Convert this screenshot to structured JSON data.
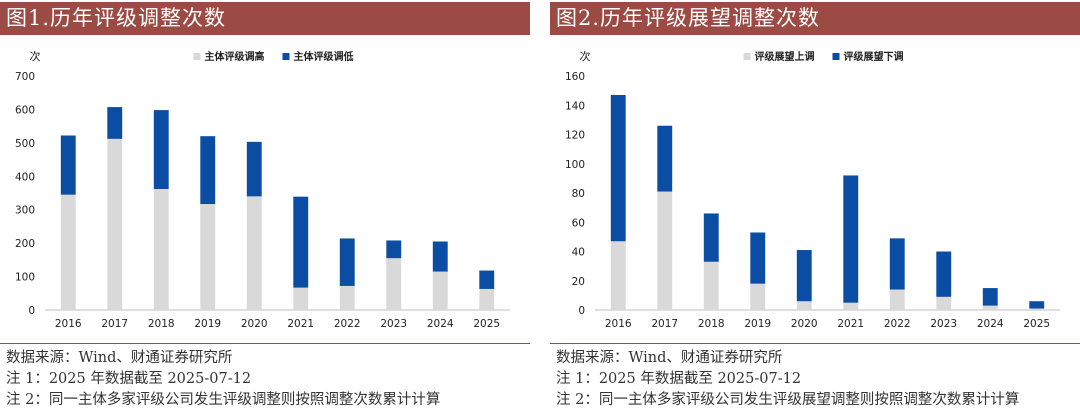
{
  "panels": [
    {
      "title": "图1.历年评级调整次数",
      "source": "数据来源：Wind、财通证券研究所",
      "note1": "注 1：2025 年数据截至 2025-07-12",
      "note2": "注 2：同一主体多家评级公司发生评级调整则按照调整次数累计计算"
    },
    {
      "title": "图2.历年评级展望调整次数",
      "source": "数据来源：Wind、财通证券研究所",
      "note1": "注 1：2025 年数据截至 2025-07-12",
      "note2": "注 2：同一主体多家评级公司发生评级展望调整则按照调整次数累计计算"
    }
  ],
  "colors": {
    "title_bg": "#9b4a44",
    "series_up": "#d9d9d9",
    "series_down": "#0b4da2"
  },
  "chart_data": [
    {
      "type": "bar",
      "stacked": true,
      "title": "历年评级调整次数",
      "ylabel": "次",
      "xlabel": "",
      "ylim": [
        0,
        700
      ],
      "yticks": [
        0,
        100,
        200,
        300,
        400,
        500,
        600,
        700
      ],
      "grid": false,
      "legend": "top",
      "categories": [
        "2016",
        "2017",
        "2018",
        "2019",
        "2020",
        "2021",
        "2022",
        "2023",
        "2024",
        "2025"
      ],
      "series": [
        {
          "name": "主体评级调高",
          "values": [
            345,
            512,
            362,
            317,
            340,
            67,
            72,
            155,
            115,
            63
          ]
        },
        {
          "name": "主体评级调低",
          "values": [
            177,
            95,
            236,
            203,
            163,
            272,
            142,
            53,
            90,
            55
          ]
        }
      ]
    },
    {
      "type": "bar",
      "stacked": true,
      "title": "历年评级展望调整次数",
      "ylabel": "次",
      "xlabel": "",
      "ylim": [
        0,
        160
      ],
      "yticks": [
        0,
        20,
        40,
        60,
        80,
        100,
        120,
        140,
        160
      ],
      "grid": false,
      "legend": "top",
      "categories": [
        "2016",
        "2017",
        "2018",
        "2019",
        "2020",
        "2021",
        "2022",
        "2023",
        "2024",
        "2025"
      ],
      "series": [
        {
          "name": "评级展望上调",
          "values": [
            47,
            81,
            33,
            18,
            6,
            5,
            14,
            9,
            3,
            1
          ]
        },
        {
          "name": "评级展望下调",
          "values": [
            100,
            45,
            33,
            35,
            35,
            87,
            35,
            31,
            12,
            5
          ]
        }
      ]
    }
  ]
}
